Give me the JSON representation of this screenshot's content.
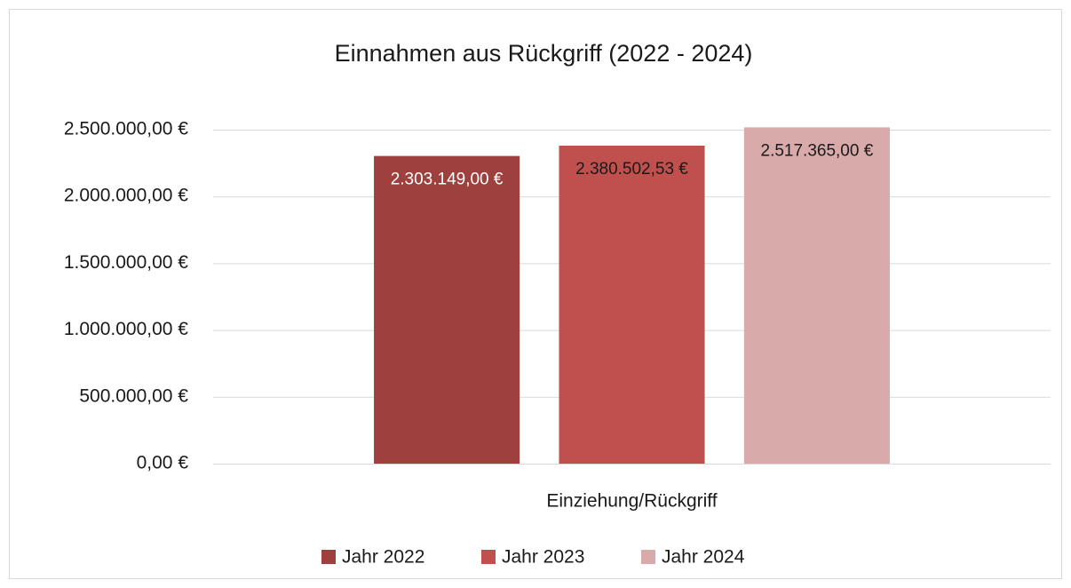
{
  "chart_data": {
    "type": "bar",
    "title": "Einnahmen aus Rückgriff (2022 - 2024)",
    "categories": [
      "Einziehung/Rückgriff"
    ],
    "series": [
      {
        "name": "Jahr 2022",
        "color": "#9e403d",
        "label_color": "#ffffff",
        "values": [
          2303149
        ],
        "value_labels": [
          "2.303.149,00 €"
        ]
      },
      {
        "name": "Jahr 2023",
        "color": "#c0504d",
        "label_color": "#1a1a1a",
        "values": [
          2380502.53
        ],
        "value_labels": [
          "2.380.502,53 €"
        ]
      },
      {
        "name": "Jahr 2024",
        "color": "#d9aaaa",
        "label_color": "#1a1a1a",
        "values": [
          2517365
        ],
        "value_labels": [
          "2.517.365,00 €"
        ]
      }
    ],
    "ylim": [
      0,
      2500000
    ],
    "yticks": [
      {
        "value": 0,
        "label": "0,00 €"
      },
      {
        "value": 500000,
        "label": "500.000,00 €"
      },
      {
        "value": 1000000,
        "label": "1.000.000,00 €"
      },
      {
        "value": 1500000,
        "label": "1.500.000,00 €"
      },
      {
        "value": 2000000,
        "label": "2.000.000,00 €"
      },
      {
        "value": 2500000,
        "label": "2.500.000,00 €"
      }
    ],
    "grid": true,
    "legend": "bottom"
  }
}
